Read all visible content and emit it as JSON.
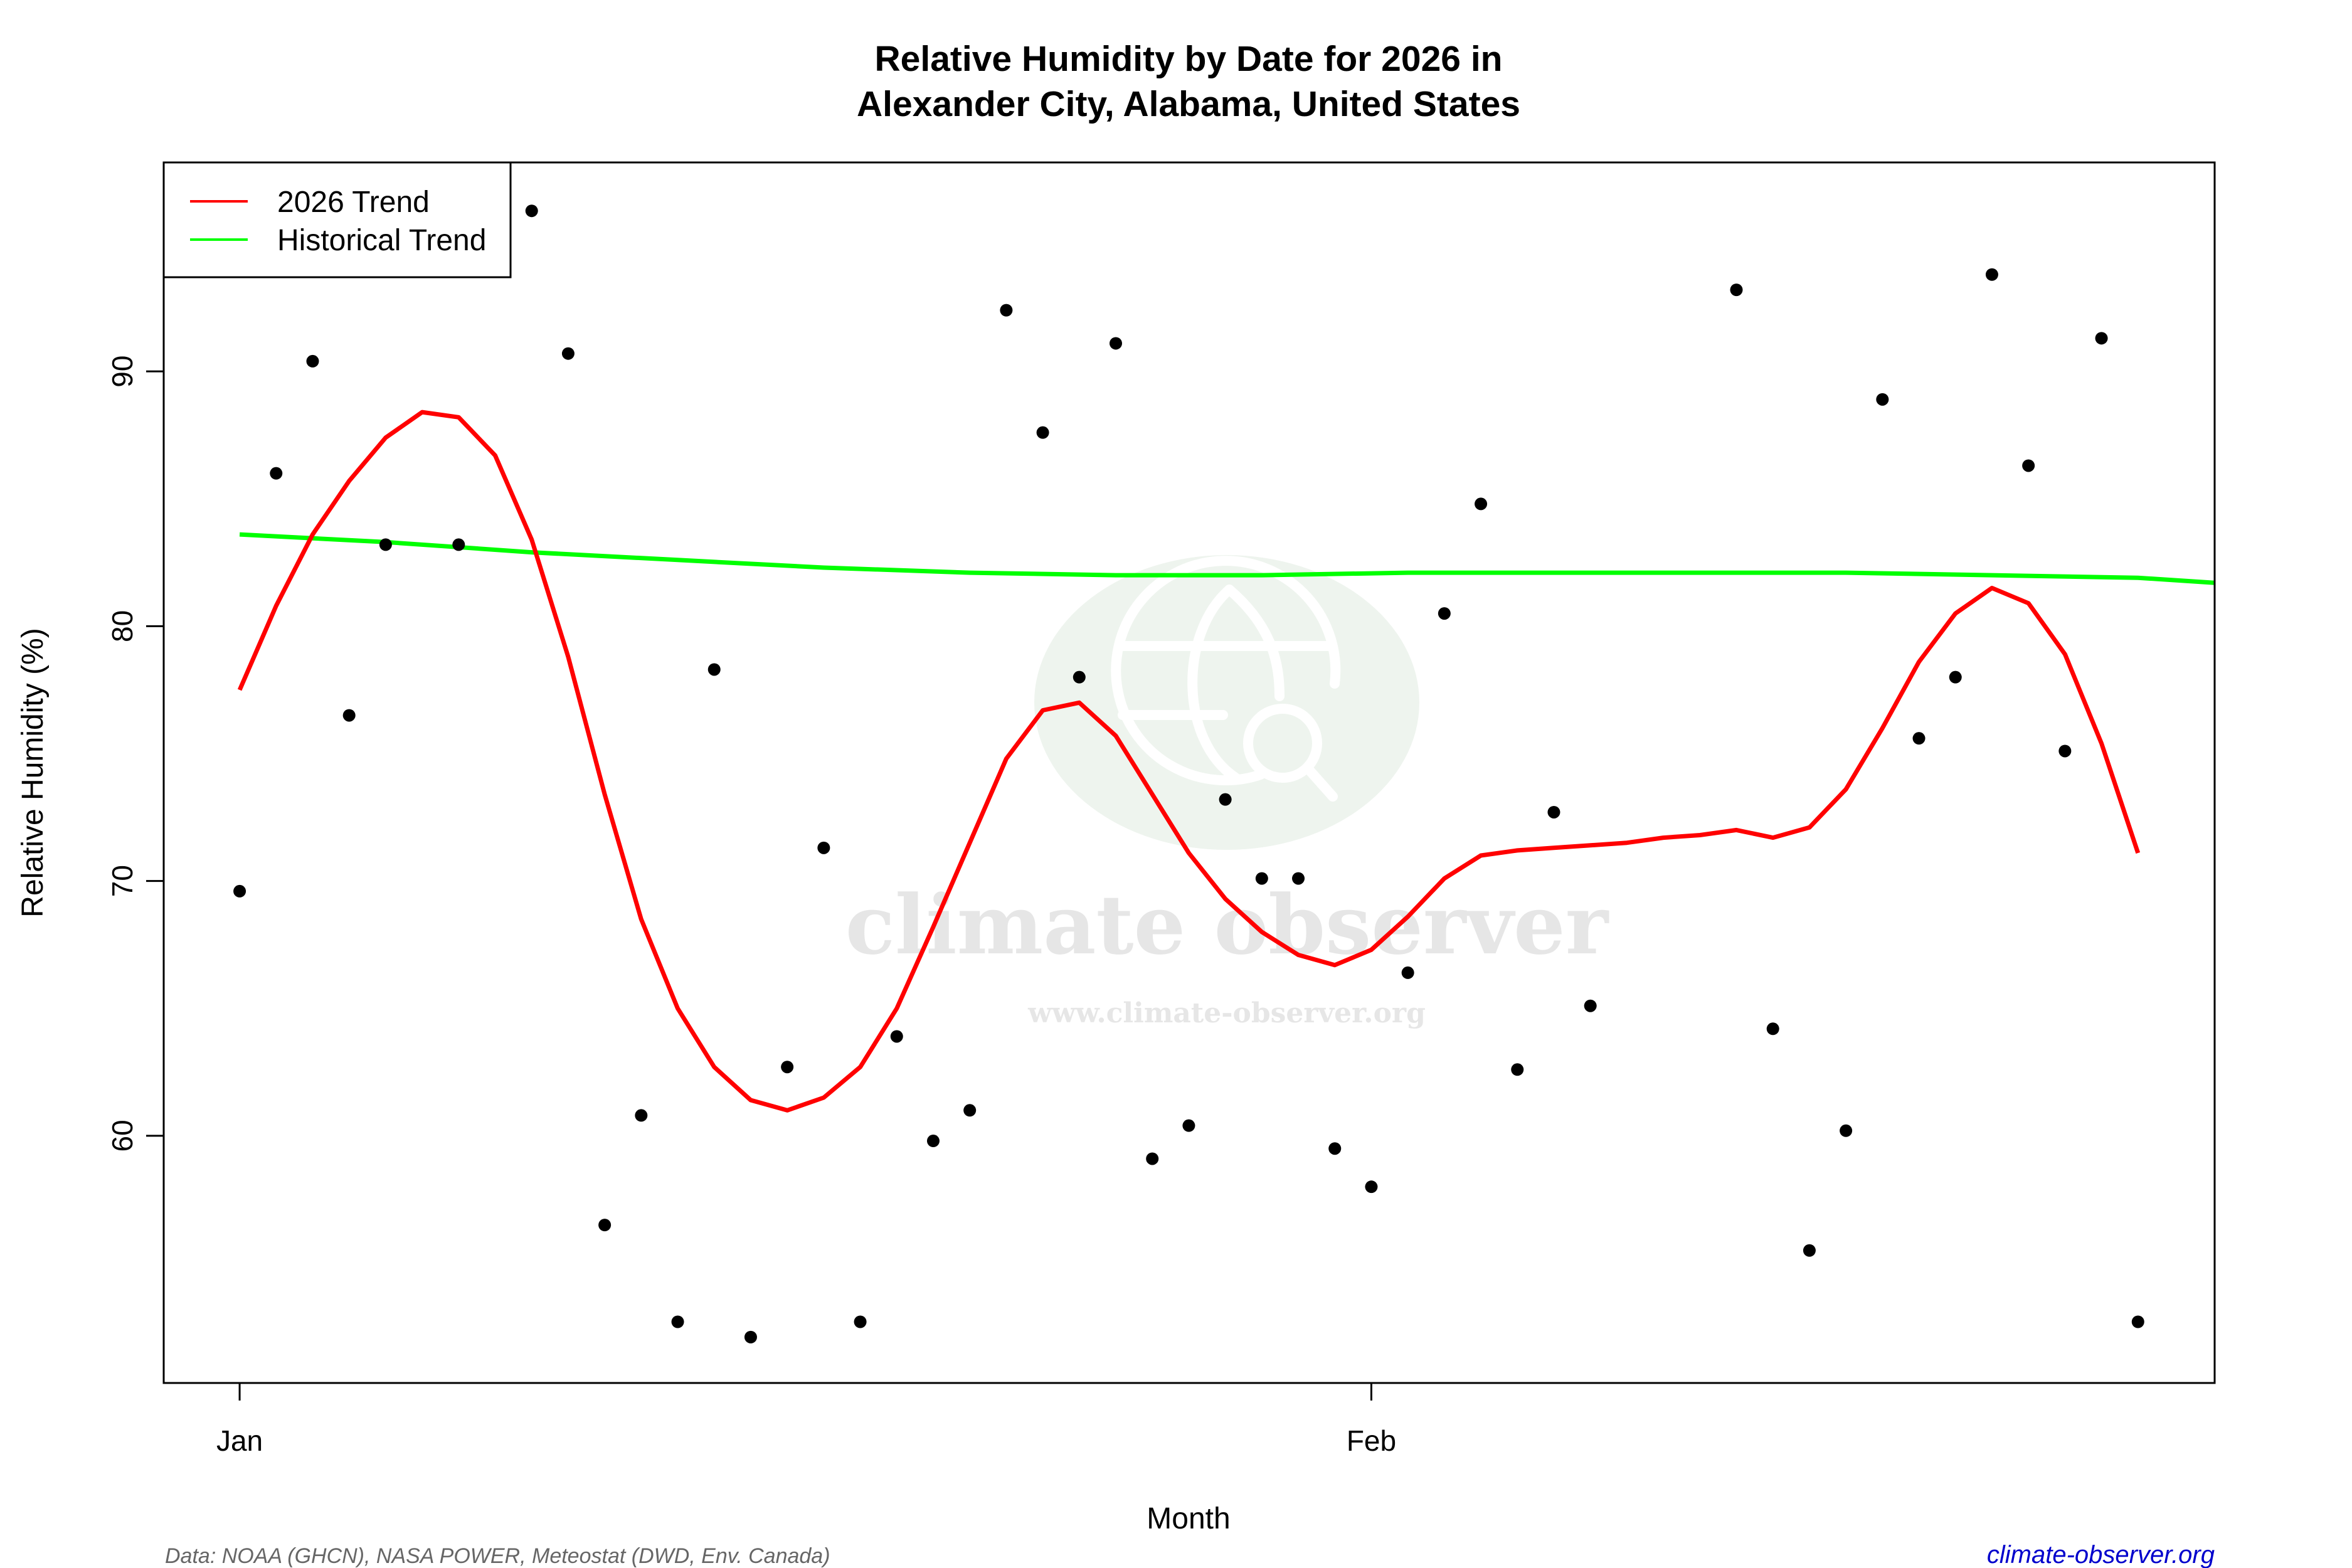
{
  "chart": {
    "title_line1": "Relative Humidity by Date for 2026 in",
    "title_line2": "Alexander City, Alabama, United States",
    "xlabel": "Month",
    "ylabel": "Relative Humidity (%)",
    "legend": {
      "items": [
        {
          "label": "2026 Trend",
          "color": "#ff0000"
        },
        {
          "label": "Historical Trend",
          "color": "#00ff00"
        }
      ]
    },
    "footer_source": "Data: NOAA (GHCN), NASA POWER, Meteostat (DWD, Env. Canada)",
    "footer_site": "climate-observer.org",
    "watermark": {
      "name": "climate observer",
      "url": "www.climate-observer.org"
    }
  },
  "chart_data": {
    "type": "scatter",
    "title": "Relative Humidity by Date for 2026 in Alexander City, Alabama, United States",
    "xlabel": "Month",
    "ylabel": "Relative Humidity (%)",
    "x_ticks": [
      {
        "day": 0,
        "label": "Jan"
      },
      {
        "day": 31,
        "label": "Feb"
      }
    ],
    "y_ticks": [
      60,
      70,
      80,
      90
    ],
    "xlim": [
      -2.08,
      54.1
    ],
    "ylim": [
      50.3,
      98.2
    ],
    "grid": false,
    "legend_position": "topleft",
    "colors": {
      "points": "#000000",
      "trend_2026": "#ff0000",
      "historical": "#00ff00"
    },
    "series": [
      {
        "name": "Daily 2026",
        "kind": "points",
        "x_day": [
          0,
          1,
          2,
          3,
          4,
          6,
          8,
          9,
          10,
          11,
          12,
          13,
          14,
          15,
          16,
          17,
          18,
          19,
          20,
          21,
          22,
          23,
          24,
          25,
          26,
          27,
          28,
          29,
          30,
          31,
          32,
          33,
          34,
          35,
          36,
          37,
          41,
          42,
          43,
          44,
          45,
          46,
          47,
          48,
          49,
          50,
          51,
          52
        ],
        "dates": [
          "Jan 1",
          "Jan 2",
          "Jan 3",
          "Jan 4",
          "Jan 5",
          "Jan 7",
          "Jan 9",
          "Jan 10",
          "Jan 11",
          "Jan 12",
          "Jan 13",
          "Jan 14",
          "Jan 15",
          "Jan 16",
          "Jan 17",
          "Jan 18",
          "Jan 19",
          "Jan 20",
          "Jan 21",
          "Jan 22",
          "Jan 23",
          "Jan 24",
          "Jan 25",
          "Jan 26",
          "Jan 27",
          "Jan 28",
          "Jan 29",
          "Jan 30",
          "Jan 31",
          "Feb 1",
          "Feb 2",
          "Feb 3",
          "Feb 4",
          "Feb 5",
          "Feb 6",
          "Feb 7",
          "Feb 11",
          "Feb 12",
          "Feb 13",
          "Feb 14",
          "Feb 15",
          "Feb 16",
          "Feb 17",
          "Feb 18",
          "Feb 19",
          "Feb 20",
          "Feb 21",
          "Feb 22"
        ],
        "values": [
          69.6,
          86.0,
          90.4,
          76.5,
          83.2,
          83.2,
          96.3,
          90.7,
          56.5,
          60.8,
          52.7,
          78.3,
          52.1,
          62.7,
          71.3,
          52.7,
          63.9,
          59.8,
          61.0,
          92.4,
          87.6,
          78.0,
          91.1,
          59.1,
          60.4,
          73.2,
          70.1,
          70.1,
          59.5,
          58.0,
          66.4,
          80.5,
          84.8,
          62.6,
          72.7,
          65.1,
          93.2,
          64.2,
          55.5,
          60.2,
          88.9,
          75.6,
          78.0,
          93.8,
          86.3,
          75.1,
          91.3,
          52.7
        ]
      },
      {
        "name": "2026 Trend",
        "kind": "line",
        "x_day": [
          0,
          1,
          2,
          3,
          4,
          5,
          6,
          7,
          8,
          9,
          10,
          11,
          12,
          13,
          14,
          15,
          16,
          17,
          18,
          19,
          20,
          21,
          22,
          23,
          24,
          25,
          26,
          27,
          28,
          29,
          30,
          31,
          32,
          33,
          34,
          35,
          36,
          37,
          38,
          39,
          40,
          41,
          42,
          43,
          44,
          45,
          46,
          47,
          48,
          49,
          50,
          51,
          52
        ],
        "values": [
          77.5,
          80.8,
          83.6,
          85.7,
          87.4,
          88.4,
          88.2,
          86.7,
          83.4,
          78.8,
          73.4,
          68.5,
          65.0,
          62.7,
          61.4,
          61.0,
          61.5,
          62.7,
          65.0,
          68.2,
          71.5,
          74.8,
          76.7,
          77.0,
          75.7,
          73.4,
          71.1,
          69.3,
          68.0,
          67.1,
          66.7,
          67.3,
          68.6,
          70.1,
          71.0,
          71.2,
          71.3,
          71.4,
          71.5,
          71.7,
          71.8,
          72.0,
          71.7,
          72.1,
          73.6,
          76.0,
          78.6,
          80.5,
          81.5,
          80.9,
          78.9,
          75.4,
          71.1
        ]
      },
      {
        "name": "Historical Trend",
        "kind": "line",
        "x_day": [
          0,
          4,
          8,
          12,
          16,
          20,
          24,
          28,
          32,
          36,
          40,
          44,
          48,
          52,
          54.1
        ],
        "values": [
          83.6,
          83.3,
          82.9,
          82.6,
          82.3,
          82.1,
          82.0,
          82.0,
          82.1,
          82.1,
          82.1,
          82.1,
          82.0,
          81.9,
          81.7
        ]
      }
    ]
  }
}
